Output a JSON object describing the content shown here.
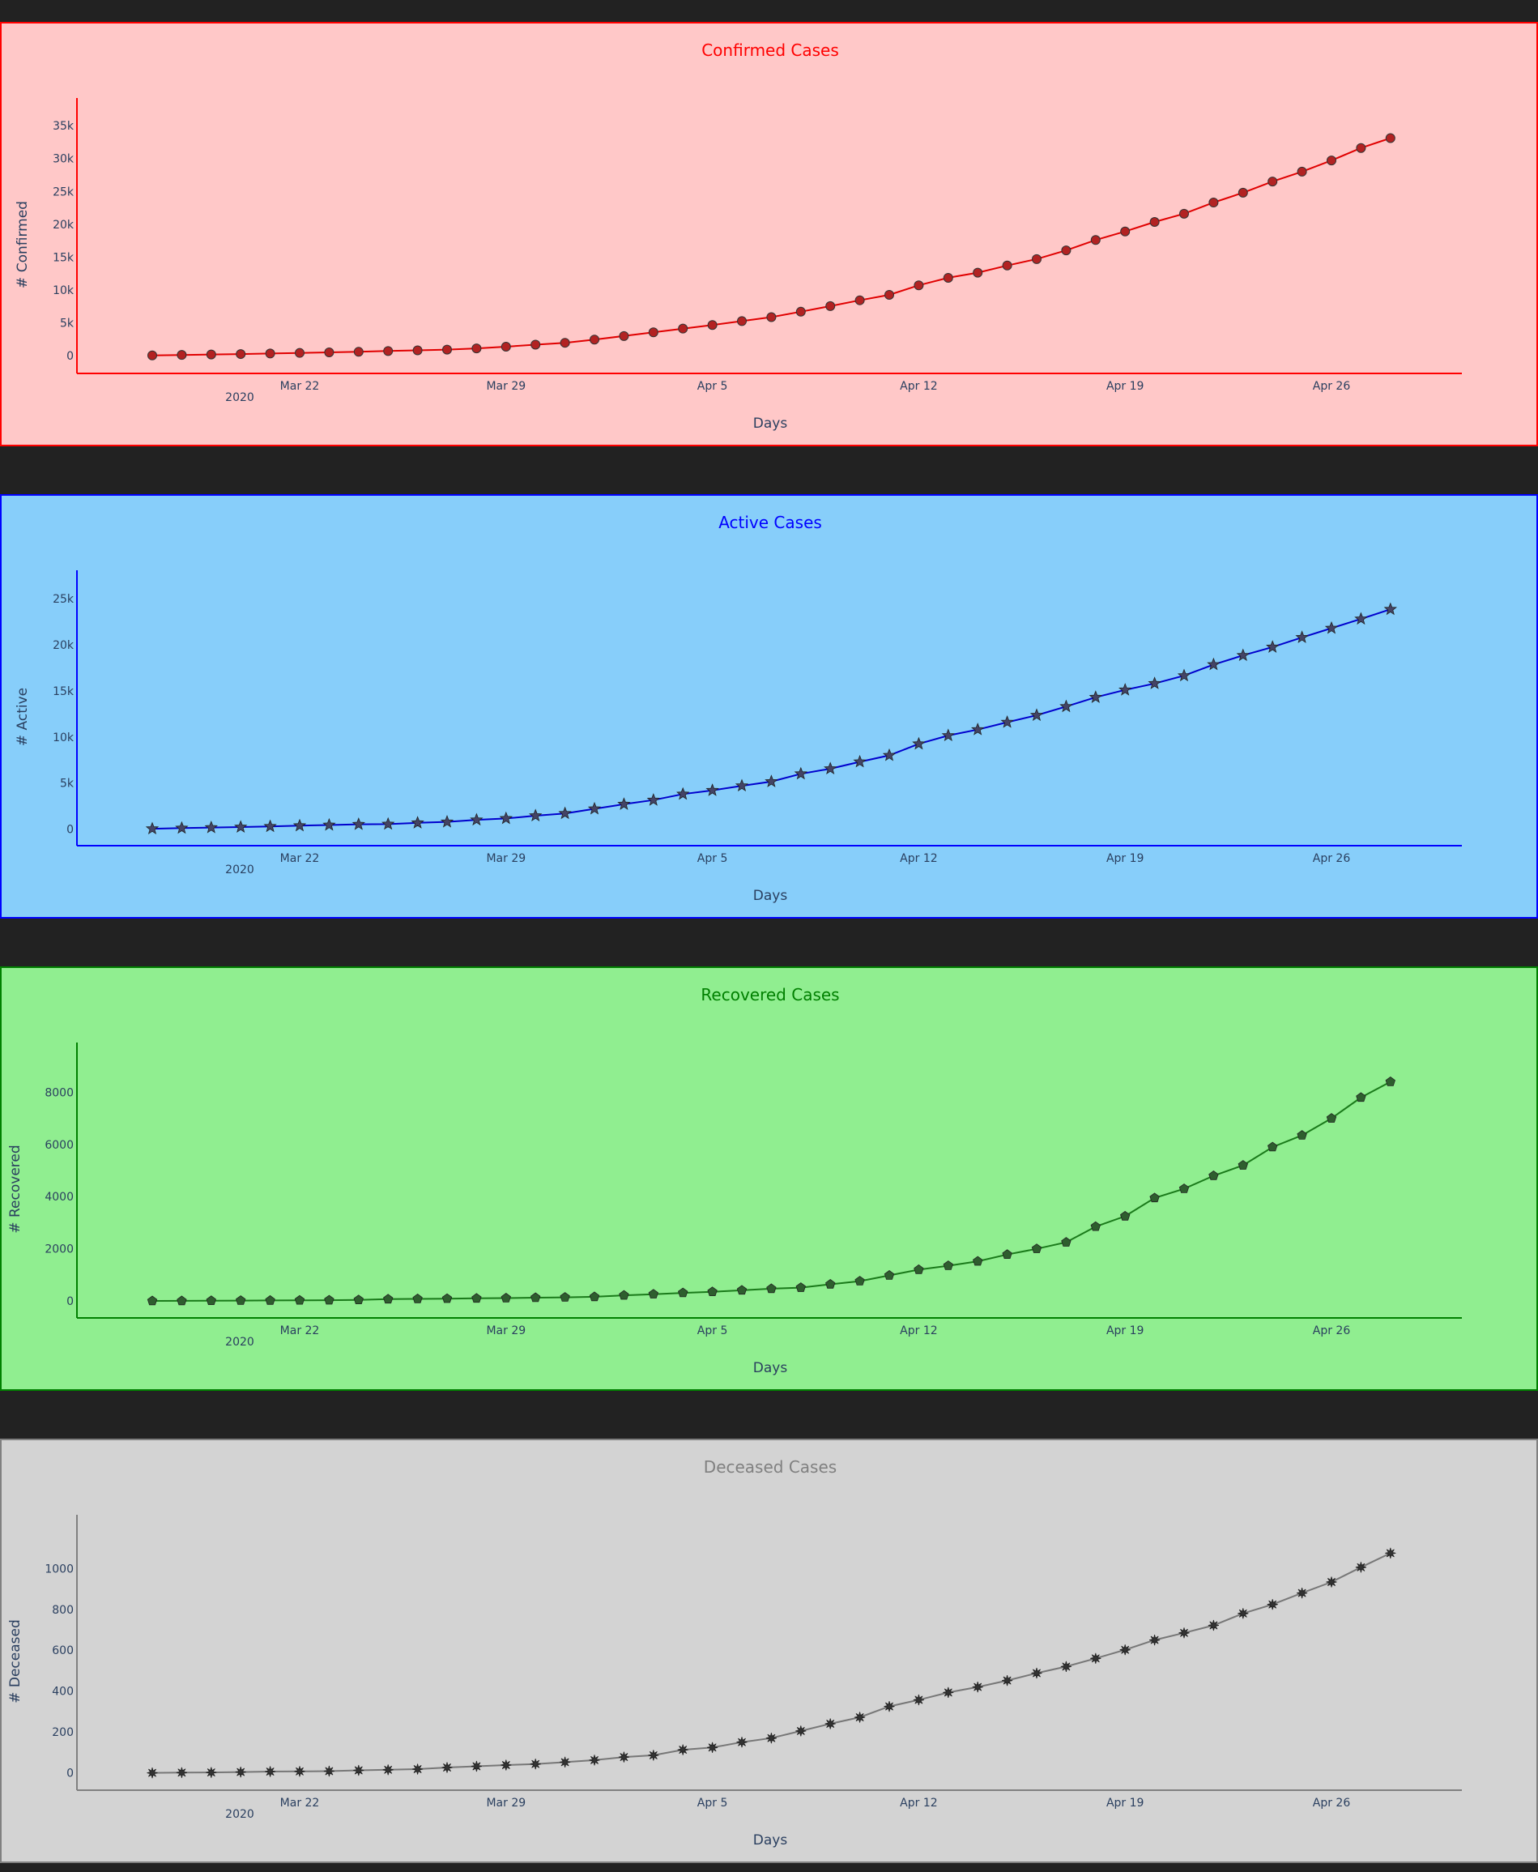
{
  "chart_data": [
    {
      "type": "line",
      "title": "Confirmed Cases",
      "xlabel": "Days",
      "ylabel": "# Confirmed",
      "ylim": [
        -2700,
        36000
      ],
      "x_ticks": [
        "Mar 22",
        "Mar 29",
        "Apr 5",
        "Apr 12",
        "Apr 19",
        "Apr 26"
      ],
      "x_tick_year": "2020",
      "y_ticks": [
        0,
        5000,
        10000,
        15000,
        20000,
        25000,
        30000,
        35000
      ],
      "y_tick_labels": [
        "0",
        "5k",
        "10k",
        "15k",
        "20k",
        "25k",
        "30k",
        "35k"
      ],
      "marker": "circle",
      "colors": {
        "bg": "#ffc8c8",
        "accent": "#ff0000",
        "line": "#e00000",
        "marker": "#b22222"
      },
      "x_start": "2020-03-17",
      "values": [
        40,
        115,
        185,
        250,
        330,
        420,
        505,
        590,
        710,
        810,
        925,
        1110,
        1370,
        1680,
        1960,
        2450,
        2990,
        3550,
        4120,
        4670,
        5260,
        5860,
        6690,
        7540,
        8430,
        9260,
        10710,
        11850,
        12630,
        13720,
        14700,
        16020,
        17600,
        18900,
        20350,
        21600,
        23300,
        24800,
        26500,
        28000,
        29700,
        31600,
        33100
      ]
    },
    {
      "type": "line",
      "title": "Active Cases",
      "xlabel": "Days",
      "ylabel": "# Active",
      "ylim": [
        -1800,
        25800
      ],
      "x_ticks": [
        "Mar 22",
        "Mar 29",
        "Apr 5",
        "Apr 12",
        "Apr 19",
        "Apr 26"
      ],
      "x_tick_year": "2020",
      "y_ticks": [
        0,
        5000,
        10000,
        15000,
        20000,
        25000
      ],
      "y_tick_labels": [
        "0",
        "5k",
        "10k",
        "15k",
        "20k",
        "25k"
      ],
      "marker": "star",
      "colors": {
        "bg": "#87cefa",
        "accent": "#0000ff",
        "line": "#0000cd",
        "marker": "#444466"
      },
      "x_start": "2020-03-17",
      "values": [
        40,
        110,
        170,
        220,
        290,
        370,
        440,
        520,
        540,
        680,
        780,
        1000,
        1150,
        1450,
        1700,
        2200,
        2700,
        3150,
        3800,
        4200,
        4700,
        5150,
        6000,
        6550,
        7300,
        8000,
        9250,
        10150,
        10800,
        11600,
        12350,
        13300,
        14300,
        15100,
        15800,
        16650,
        17850,
        18850,
        19750,
        20800,
        21800,
        22800,
        23850
      ]
    },
    {
      "type": "line",
      "title": "Recovered Cases",
      "xlabel": "Days",
      "ylabel": "# Recovered",
      "ylim": [
        -650,
        9100
      ],
      "x_ticks": [
        "Mar 22",
        "Mar 29",
        "Apr 5",
        "Apr 12",
        "Apr 19",
        "Apr 26"
      ],
      "x_tick_year": "2020",
      "y_ticks": [
        0,
        2000,
        4000,
        6000,
        8000
      ],
      "y_tick_labels": [
        "0",
        "2000",
        "4000",
        "6000",
        "8000"
      ],
      "marker": "pentagon",
      "colors": {
        "bg": "#90ee90",
        "accent": "#008000",
        "line": "#1a7a1a",
        "marker": "#2e5e2e"
      },
      "x_start": "2020-03-17",
      "values": [
        3,
        5,
        10,
        15,
        20,
        25,
        30,
        40,
        70,
        80,
        90,
        100,
        110,
        125,
        140,
        160,
        215,
        260,
        310,
        350,
        410,
        470,
        510,
        640,
        760,
        980,
        1200,
        1350,
        1520,
        1780,
        2000,
        2250,
        2850,
        3250,
        3950,
        4300,
        4800,
        5200,
        5900,
        6350,
        7000,
        7800,
        8400
      ]
    },
    {
      "type": "line",
      "title": "Deceased Cases",
      "xlabel": "Days",
      "ylabel": "# Deceased",
      "ylim": [
        -85,
        1160
      ],
      "x_ticks": [
        "Mar 22",
        "Mar 29",
        "Apr 5",
        "Apr 12",
        "Apr 19",
        "Apr 26"
      ],
      "x_tick_year": "2020",
      "y_ticks": [
        0,
        200,
        400,
        600,
        800,
        1000
      ],
      "y_tick_labels": [
        "0",
        "200",
        "400",
        "600",
        "800",
        "1000"
      ],
      "marker": "asterisk",
      "colors": {
        "bg": "#d3d3d3",
        "accent": "#808080",
        "line": "#777777",
        "marker": "#333333"
      },
      "x_start": "2020-03-17",
      "values": [
        0,
        1,
        2,
        4,
        6,
        7,
        8,
        12,
        15,
        18,
        26,
        32,
        38,
        43,
        52,
        62,
        77,
        86,
        113,
        124,
        150,
        170,
        205,
        240,
        272,
        325,
        357,
        393,
        420,
        452,
        488,
        520,
        560,
        602,
        650,
        685,
        722,
        780,
        824,
        880,
        934,
        1006,
        1075
      ]
    }
  ]
}
